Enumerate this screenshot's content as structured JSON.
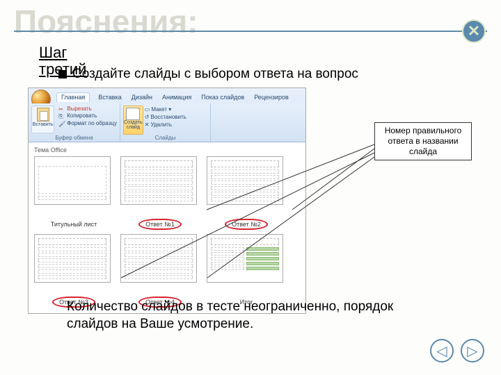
{
  "colors": {
    "accent": "#5b89ae",
    "bg_title": "#d9d9d0",
    "ring": "#d8242f"
  },
  "bg_title": "Пояснения:",
  "step_title": "Шаг третий",
  "step_sub": "Создайте слайды с выбором ответа на вопрос",
  "pp": {
    "tabs": [
      "Главная",
      "Вставка",
      "Дизайн",
      "Анимация",
      "Показ слайдов",
      "Рецензиров"
    ],
    "clipboard": {
      "paste": "Вставить",
      "cut": "Вырезать",
      "copy": "Копировать",
      "format": "Формат по образцу",
      "label": "Буфер обмена"
    },
    "slides": {
      "new": "Создать слайд",
      "layout": "Макет",
      "reset": "Восстановить",
      "delete": "Удалить",
      "label": "Слайды"
    },
    "gallery": {
      "title": "Тема Office",
      "items": [
        {
          "cap": "Титульный лист",
          "ring": false
        },
        {
          "cap": "Ответ №1",
          "ring": true
        },
        {
          "cap": "Ответ №2",
          "ring": true
        },
        {
          "cap": "Ответ №3",
          "ring": true
        },
        {
          "cap": "Ответ №4",
          "ring": true
        },
        {
          "cap": "Итог",
          "ring": false
        }
      ]
    }
  },
  "callout": "Номер правильного ответа в названии слайда",
  "bottom": "Количество слайдов в тесте неограниченно, порядок слайдов на Ваше усмотрение.",
  "nav": {
    "close": "✕",
    "prev": "◁",
    "next": "▷"
  }
}
